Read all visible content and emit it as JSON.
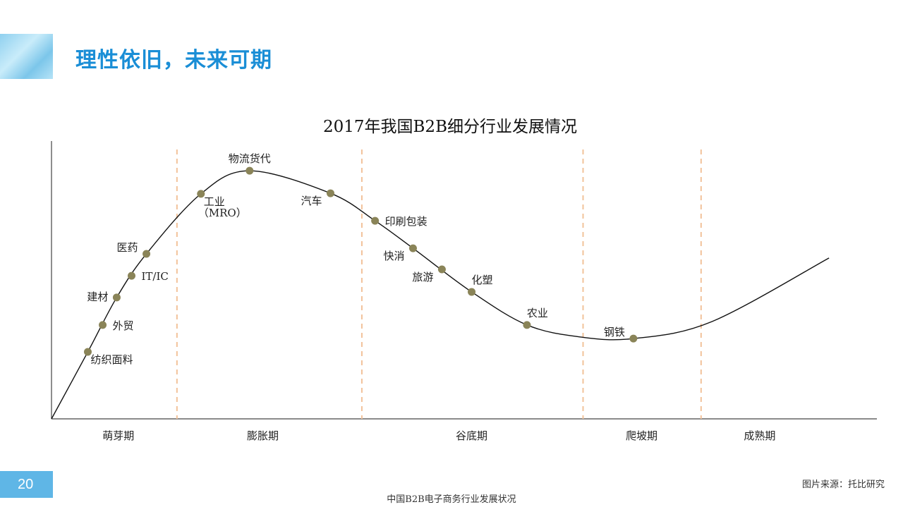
{
  "header": {
    "title": "理性依旧，未来可期"
  },
  "footer": {
    "page_number": "20",
    "caption": "中国B2B电子商务行业发展状况",
    "source": "图片来源：托比研究"
  },
  "colors": {
    "accent": "#1a8ed6",
    "point": "#8a8458",
    "divider": "#f2c29a"
  },
  "chart_data": {
    "type": "line",
    "title": "2017年我国B2B细分行业发展情况",
    "xlim": [
      0,
      100
    ],
    "ylim": [
      0,
      100
    ],
    "stages": [
      {
        "label": "萌芽期",
        "center": 8.1
      },
      {
        "label": "膨胀期",
        "center": 25.6
      },
      {
        "label": "谷底期",
        "center": 50.9
      },
      {
        "label": "爬坡期",
        "center": 71.5
      },
      {
        "label": "成熟期",
        "center": 85.8
      }
    ],
    "dividers": [
      15.2,
      37.6,
      64.4,
      78.7
    ],
    "curve": [
      [
        0,
        0
      ],
      [
        4.4,
        24.1
      ],
      [
        7.9,
        43.7
      ],
      [
        11.5,
        59.4
      ],
      [
        18.1,
        81.0
      ],
      [
        24.0,
        89.3
      ],
      [
        33.8,
        81.2
      ],
      [
        39.2,
        71.3
      ],
      [
        43.8,
        61.4
      ],
      [
        50.9,
        45.7
      ],
      [
        57.6,
        33.8
      ],
      [
        64,
        29.5
      ],
      [
        70.5,
        28.9
      ],
      [
        80,
        35
      ],
      [
        94.2,
        57.9
      ]
    ],
    "points": [
      {
        "label": "纺织面料",
        "x": 4.4,
        "y": 24.1,
        "pos": "below-right"
      },
      {
        "label": "外贸",
        "x": 6.2,
        "y": 33.8,
        "pos": "right"
      },
      {
        "label": "建材",
        "x": 7.9,
        "y": 43.7,
        "pos": "left"
      },
      {
        "label": "IT/IC",
        "x": 9.7,
        "y": 51.5,
        "pos": "right"
      },
      {
        "label": "医药",
        "x": 11.5,
        "y": 59.4,
        "pos": "above-left"
      },
      {
        "label": "工业",
        "sublabel": "（MRO）",
        "x": 18.1,
        "y": 81.0,
        "pos": "below-right"
      },
      {
        "label": "物流货代",
        "x": 24.0,
        "y": 89.3,
        "pos": "above"
      },
      {
        "label": "汽车",
        "x": 33.8,
        "y": 81.2,
        "pos": "below-left"
      },
      {
        "label": "印刷包装",
        "x": 39.2,
        "y": 71.3,
        "pos": "right"
      },
      {
        "label": "快消",
        "x": 43.8,
        "y": 61.4,
        "pos": "below-left"
      },
      {
        "label": "旅游",
        "x": 47.3,
        "y": 53.8,
        "pos": "below-left"
      },
      {
        "label": "化塑",
        "x": 50.9,
        "y": 45.7,
        "pos": "above-right"
      },
      {
        "label": "农业",
        "x": 57.6,
        "y": 33.8,
        "pos": "above-right"
      },
      {
        "label": "钢铁",
        "x": 70.5,
        "y": 28.9,
        "pos": "above-left"
      }
    ]
  }
}
